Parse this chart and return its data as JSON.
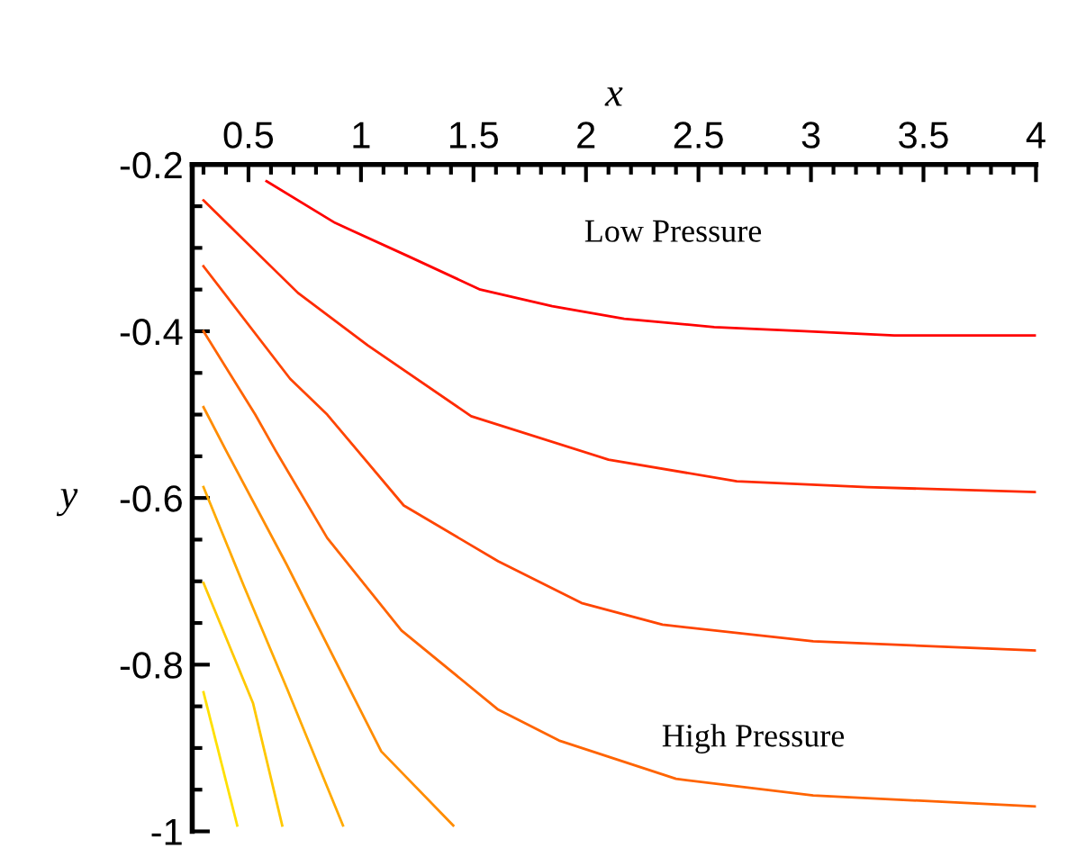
{
  "chart_data": {
    "type": "line",
    "xlabel": "x",
    "ylabel": "y",
    "xlim": [
      0.25,
      4
    ],
    "ylim": [
      -1,
      -0.2
    ],
    "xticks": [
      0.5,
      1,
      1.5,
      2,
      2.5,
      3,
      3.5,
      4
    ],
    "yticks": [
      {
        "value": -0.2,
        "label": "-0.2"
      },
      {
        "value": -0.4,
        "label": "-0.4"
      },
      {
        "value": -0.6,
        "label": "-0.6"
      },
      {
        "value": -0.8,
        "label": "-0.8"
      },
      {
        "value": -1,
        "label": "-1"
      }
    ],
    "grid": false,
    "legend": false,
    "marker": "none",
    "line_style": "solid",
    "series": [
      {
        "color": "#ff0000",
        "x": [
          0.58,
          0.885,
          1.21,
          1.53,
          1.85,
          2.17,
          2.57,
          2.97,
          3.37,
          4.0
        ],
        "values": [
          -0.22,
          -0.27,
          -0.31,
          -0.35,
          -0.37,
          -0.385,
          -0.395,
          -0.4,
          -0.405,
          -0.405
        ]
      },
      {
        "color": "#ff2a00",
        "x": [
          0.3,
          0.72,
          1.03,
          1.49,
          2.1,
          2.67,
          3.25,
          4.0
        ],
        "values": [
          -0.243,
          -0.354,
          -0.417,
          -0.502,
          -0.554,
          -0.58,
          -0.587,
          -0.593
        ]
      },
      {
        "color": "#ff4500",
        "x": [
          0.3,
          0.685,
          0.85,
          1.19,
          1.61,
          1.98,
          2.34,
          3.01,
          4.0
        ],
        "values": [
          -0.322,
          -0.457,
          -0.5,
          -0.609,
          -0.676,
          -0.726,
          -0.752,
          -0.772,
          -0.783
        ]
      },
      {
        "color": "#ff6400",
        "x": [
          0.3,
          0.53,
          0.62,
          0.85,
          1.18,
          1.61,
          1.88,
          2.4,
          3.01,
          4.0
        ],
        "values": [
          -0.4,
          -0.5,
          -0.543,
          -0.648,
          -0.759,
          -0.854,
          -0.891,
          -0.937,
          -0.957,
          -0.97
        ]
      },
      {
        "color": "#ff8c00",
        "x": [
          0.3,
          0.4,
          0.67,
          1.09,
          1.41
        ],
        "values": [
          -0.491,
          -0.543,
          -0.68,
          -0.904,
          -0.993
        ]
      },
      {
        "color": "#ffaa00",
        "x": [
          0.3,
          0.48,
          0.67,
          0.92
        ],
        "values": [
          -0.587,
          -0.706,
          -0.828,
          -0.993
        ]
      },
      {
        "color": "#ffc800",
        "x": [
          0.3,
          0.52,
          0.65
        ],
        "values": [
          -0.702,
          -0.846,
          -0.993
        ]
      },
      {
        "color": "#ffe000",
        "x": [
          0.3,
          0.45
        ],
        "values": [
          -0.833,
          -0.993
        ]
      }
    ],
    "annotations": [
      "Low Pressure",
      "High Pressure"
    ]
  }
}
